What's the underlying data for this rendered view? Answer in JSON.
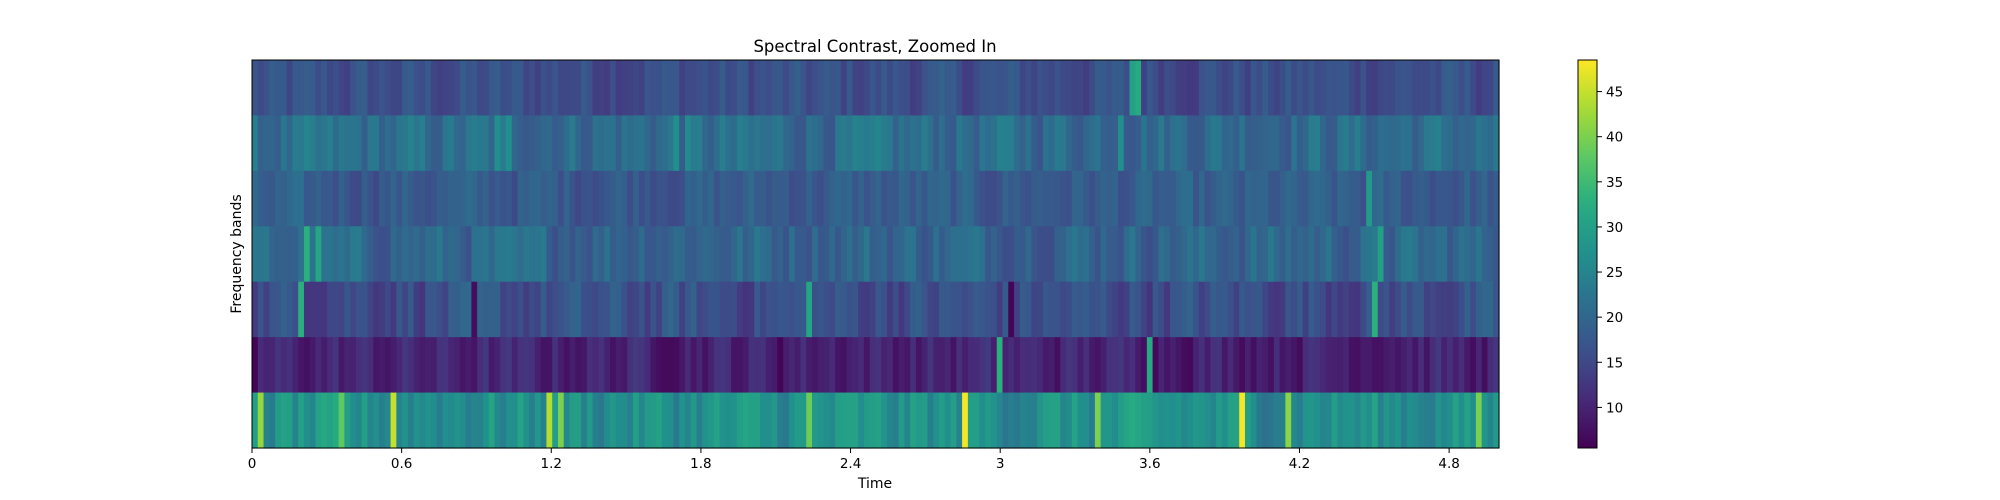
{
  "chart_data": {
    "type": "heatmap",
    "title": "Spectral Contrast, Zoomed In",
    "xlabel": "Time",
    "ylabel": "Frequency bands",
    "xlim": [
      0,
      5.0
    ],
    "x_ticks": [
      0,
      0.6,
      1.2,
      1.8,
      2.4,
      3,
      3.6,
      4.2,
      4.8
    ],
    "x_tick_labels": [
      "0",
      "0.6",
      "1.2",
      "1.8",
      "2.4",
      "3",
      "3.6",
      "4.2",
      "4.8"
    ],
    "n_bands": 7,
    "n_frames": 216,
    "band_base_values": [
      16,
      21,
      18,
      20,
      16,
      10,
      27
    ],
    "band_variation": [
      4,
      5,
      4,
      5,
      5,
      4,
      6
    ],
    "highlights": [
      {
        "band": 0,
        "time": 3.54,
        "value": 30
      },
      {
        "band": 0,
        "time": 3.56,
        "value": 32
      },
      {
        "band": 1,
        "time": 0.99,
        "value": 27
      },
      {
        "band": 1,
        "time": 1.03,
        "value": 27
      },
      {
        "band": 1,
        "time": 1.71,
        "value": 27
      },
      {
        "band": 1,
        "time": 1.75,
        "value": 26
      },
      {
        "band": 1,
        "time": 3.48,
        "value": 27
      },
      {
        "band": 2,
        "time": 4.49,
        "value": 29
      },
      {
        "band": 3,
        "time": 0.21,
        "value": 33
      },
      {
        "band": 3,
        "time": 0.26,
        "value": 31
      },
      {
        "band": 3,
        "time": 4.52,
        "value": 30
      },
      {
        "band": 4,
        "time": 0.19,
        "value": 33
      },
      {
        "band": 4,
        "time": 2.24,
        "value": 31
      },
      {
        "band": 4,
        "time": 4.5,
        "value": 33
      },
      {
        "band": 4,
        "time": 3.04,
        "value": 6
      },
      {
        "band": 4,
        "time": 0.9,
        "value": 7
      },
      {
        "band": 5,
        "time": 3.6,
        "value": 32
      },
      {
        "band": 5,
        "time": 3.0,
        "value": 33
      },
      {
        "band": 5,
        "time": 2.12,
        "value": 6
      },
      {
        "band": 5,
        "time": 0.02,
        "value": 6
      },
      {
        "band": 5,
        "time": 4.95,
        "value": 7
      },
      {
        "band": 6,
        "time": 0.04,
        "value": 42
      },
      {
        "band": 6,
        "time": 0.57,
        "value": 45
      },
      {
        "band": 6,
        "time": 1.19,
        "value": 44
      },
      {
        "band": 6,
        "time": 1.23,
        "value": 40
      },
      {
        "band": 6,
        "time": 2.86,
        "value": 48
      },
      {
        "band": 6,
        "time": 3.97,
        "value": 48
      },
      {
        "band": 6,
        "time": 4.16,
        "value": 41
      },
      {
        "band": 6,
        "time": 3.39,
        "value": 40
      },
      {
        "band": 6,
        "time": 2.23,
        "value": 39
      },
      {
        "band": 6,
        "time": 0.36,
        "value": 38
      },
      {
        "band": 6,
        "time": 4.92,
        "value": 40
      }
    ],
    "colorbar": {
      "colormap": "viridis",
      "range": [
        5.5,
        48.5
      ],
      "ticks": [
        10,
        15,
        20,
        25,
        30,
        35,
        40,
        45
      ],
      "tick_labels": [
        "10",
        "15",
        "20",
        "25",
        "30",
        "35",
        "40",
        "45"
      ]
    }
  }
}
